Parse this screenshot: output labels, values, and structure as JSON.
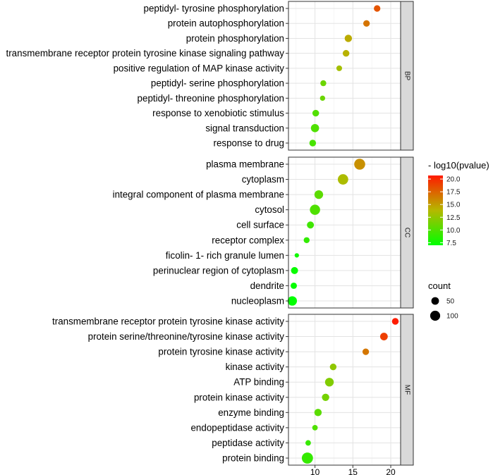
{
  "chart_data": {
    "type": "scatter",
    "subtype": "faceted dot plot (GO enrichment)",
    "x_ticks": [
      10,
      15,
      20
    ],
    "xlim": [
      6.5,
      21.3
    ],
    "color_scale": {
      "title": "- log10(pvalue)",
      "range": [
        7,
        20.7
      ],
      "ticks": [
        "20.0",
        "17.5",
        "15.0",
        "12.5",
        "10.0",
        "7.5"
      ],
      "tick_values": [
        20.0,
        17.5,
        15.0,
        12.5,
        10.0,
        7.5
      ],
      "low_color": "#00ff00",
      "mid_color": "#b5b800",
      "high_color": "#ff1a00"
    },
    "size_scale": {
      "title": "count",
      "entries": [
        {
          "label": "50",
          "value": 50
        },
        {
          "label": "100",
          "value": 100
        }
      ]
    },
    "panels": [
      {
        "name": "BP",
        "terms": [
          {
            "label": "peptidyl- tyrosine phosphorylation",
            "x": 18.2,
            "count": 33,
            "pvalue": 18.2
          },
          {
            "label": "protein autophosphorylation",
            "x": 16.8,
            "count": 33,
            "pvalue": 16.8
          },
          {
            "label": "protein phosphorylation",
            "x": 14.4,
            "count": 45,
            "pvalue": 14.4
          },
          {
            "label": "transmembrane receptor protein tyrosine kinase signaling pathway",
            "x": 14.1,
            "count": 35,
            "pvalue": 14.1
          },
          {
            "label": "positive regulation of MAP kinase activity",
            "x": 13.2,
            "count": 22,
            "pvalue": 13.2
          },
          {
            "label": "peptidyl- serine phosphorylation",
            "x": 11.1,
            "count": 25,
            "pvalue": 11.1
          },
          {
            "label": "peptidyl- threonine phosphorylation",
            "x": 11.0,
            "count": 17,
            "pvalue": 11.0
          },
          {
            "label": "response to xenobiotic stimulus",
            "x": 10.1,
            "count": 35,
            "pvalue": 10.1
          },
          {
            "label": "signal transduction",
            "x": 10.0,
            "count": 60,
            "pvalue": 10.0
          },
          {
            "label": "response to drug",
            "x": 9.7,
            "count": 35,
            "pvalue": 9.7
          }
        ]
      },
      {
        "name": "CC",
        "terms": [
          {
            "label": "plasma membrane",
            "x": 15.9,
            "count": 125,
            "pvalue": 15.6
          },
          {
            "label": "cytoplasm",
            "x": 13.7,
            "count": 110,
            "pvalue": 13.5
          },
          {
            "label": "integral component of plasma membrane",
            "x": 10.5,
            "count": 70,
            "pvalue": 10.5
          },
          {
            "label": "cytosol",
            "x": 10.0,
            "count": 105,
            "pvalue": 10.0
          },
          {
            "label": "cell surface",
            "x": 9.4,
            "count": 40,
            "pvalue": 9.4
          },
          {
            "label": "receptor complex",
            "x": 8.9,
            "count": 25,
            "pvalue": 8.9
          },
          {
            "label": "ficolin- 1- rich granule lumen",
            "x": 7.6,
            "count": 10,
            "pvalue": 7.6
          },
          {
            "label": "perinuclear region of cytoplasm",
            "x": 7.3,
            "count": 40,
            "pvalue": 7.3
          },
          {
            "label": "dendrite",
            "x": 7.2,
            "count": 30,
            "pvalue": 7.2
          },
          {
            "label": "nucleoplasm",
            "x": 7.0,
            "count": 85,
            "pvalue": 7.0
          }
        ]
      },
      {
        "name": "MF",
        "terms": [
          {
            "label": "transmembrane receptor protein tyrosine kinase activity",
            "x": 20.6,
            "count": 35,
            "pvalue": 20.6
          },
          {
            "label": "protein serine/threonine/tyrosine kinase activity",
            "x": 19.1,
            "count": 50,
            "pvalue": 19.1
          },
          {
            "label": "protein tyrosine kinase activity",
            "x": 16.7,
            "count": 33,
            "pvalue": 16.7
          },
          {
            "label": "kinase activity",
            "x": 12.4,
            "count": 35,
            "pvalue": 12.4
          },
          {
            "label": "ATP binding",
            "x": 11.9,
            "count": 70,
            "pvalue": 11.9
          },
          {
            "label": "protein kinase activity",
            "x": 11.4,
            "count": 45,
            "pvalue": 11.4
          },
          {
            "label": "enzyme binding",
            "x": 10.4,
            "count": 45,
            "pvalue": 10.4
          },
          {
            "label": "endopeptidase activity",
            "x": 10.0,
            "count": 20,
            "pvalue": 10.0
          },
          {
            "label": "peptidase activity",
            "x": 9.1,
            "count": 20,
            "pvalue": 9.1
          },
          {
            "label": "protein binding",
            "x": 9.0,
            "count": 130,
            "pvalue": 9.0
          }
        ]
      }
    ]
  }
}
